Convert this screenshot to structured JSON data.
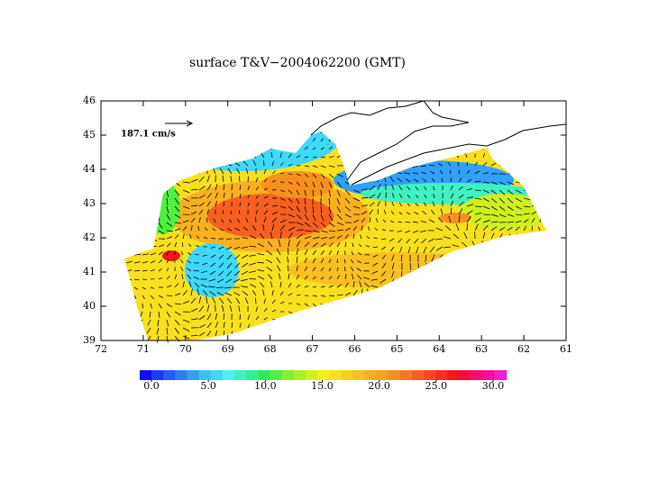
{
  "chart_data": {
    "type": "map",
    "title": "surface T&V−2004062200 (GMT)",
    "annotation": "187.1 cm/s",
    "xlim": [
      72,
      61
    ],
    "xticks": [
      72,
      71,
      70,
      69,
      68,
      67,
      66,
      65,
      64,
      63,
      62,
      61
    ],
    "ylim": [
      39,
      46
    ],
    "yticks": [
      39,
      40,
      41,
      42,
      43,
      44,
      45,
      46
    ],
    "colorbar": {
      "lim": [
        0,
        30
      ],
      "ticks": [
        {
          "value": 0,
          "label": "0.0"
        },
        {
          "value": 5,
          "label": "5.0"
        },
        {
          "value": 10,
          "label": "10.0"
        },
        {
          "value": 15,
          "label": "15.0"
        },
        {
          "value": 20,
          "label": "20.0"
        },
        {
          "value": 25,
          "label": "25.0"
        },
        {
          "value": 30,
          "label": "30.0"
        }
      ],
      "colors": [
        "#1010f0",
        "#1a3cf2",
        "#2060f4",
        "#2880f6",
        "#30a0f8",
        "#38c0fa",
        "#40d8fa",
        "#50f0f0",
        "#40f0c0",
        "#30f090",
        "#30e860",
        "#50f040",
        "#80f030",
        "#a8f028",
        "#d0f020",
        "#f0f020",
        "#f8e020",
        "#f8d020",
        "#f8c020",
        "#f8b020",
        "#f8a020",
        "#f89020",
        "#f87820",
        "#f86020",
        "#f84820",
        "#f03020",
        "#f01818",
        "#f01040",
        "#f01070",
        "#f010a0",
        "#f020d0"
      ]
    }
  }
}
